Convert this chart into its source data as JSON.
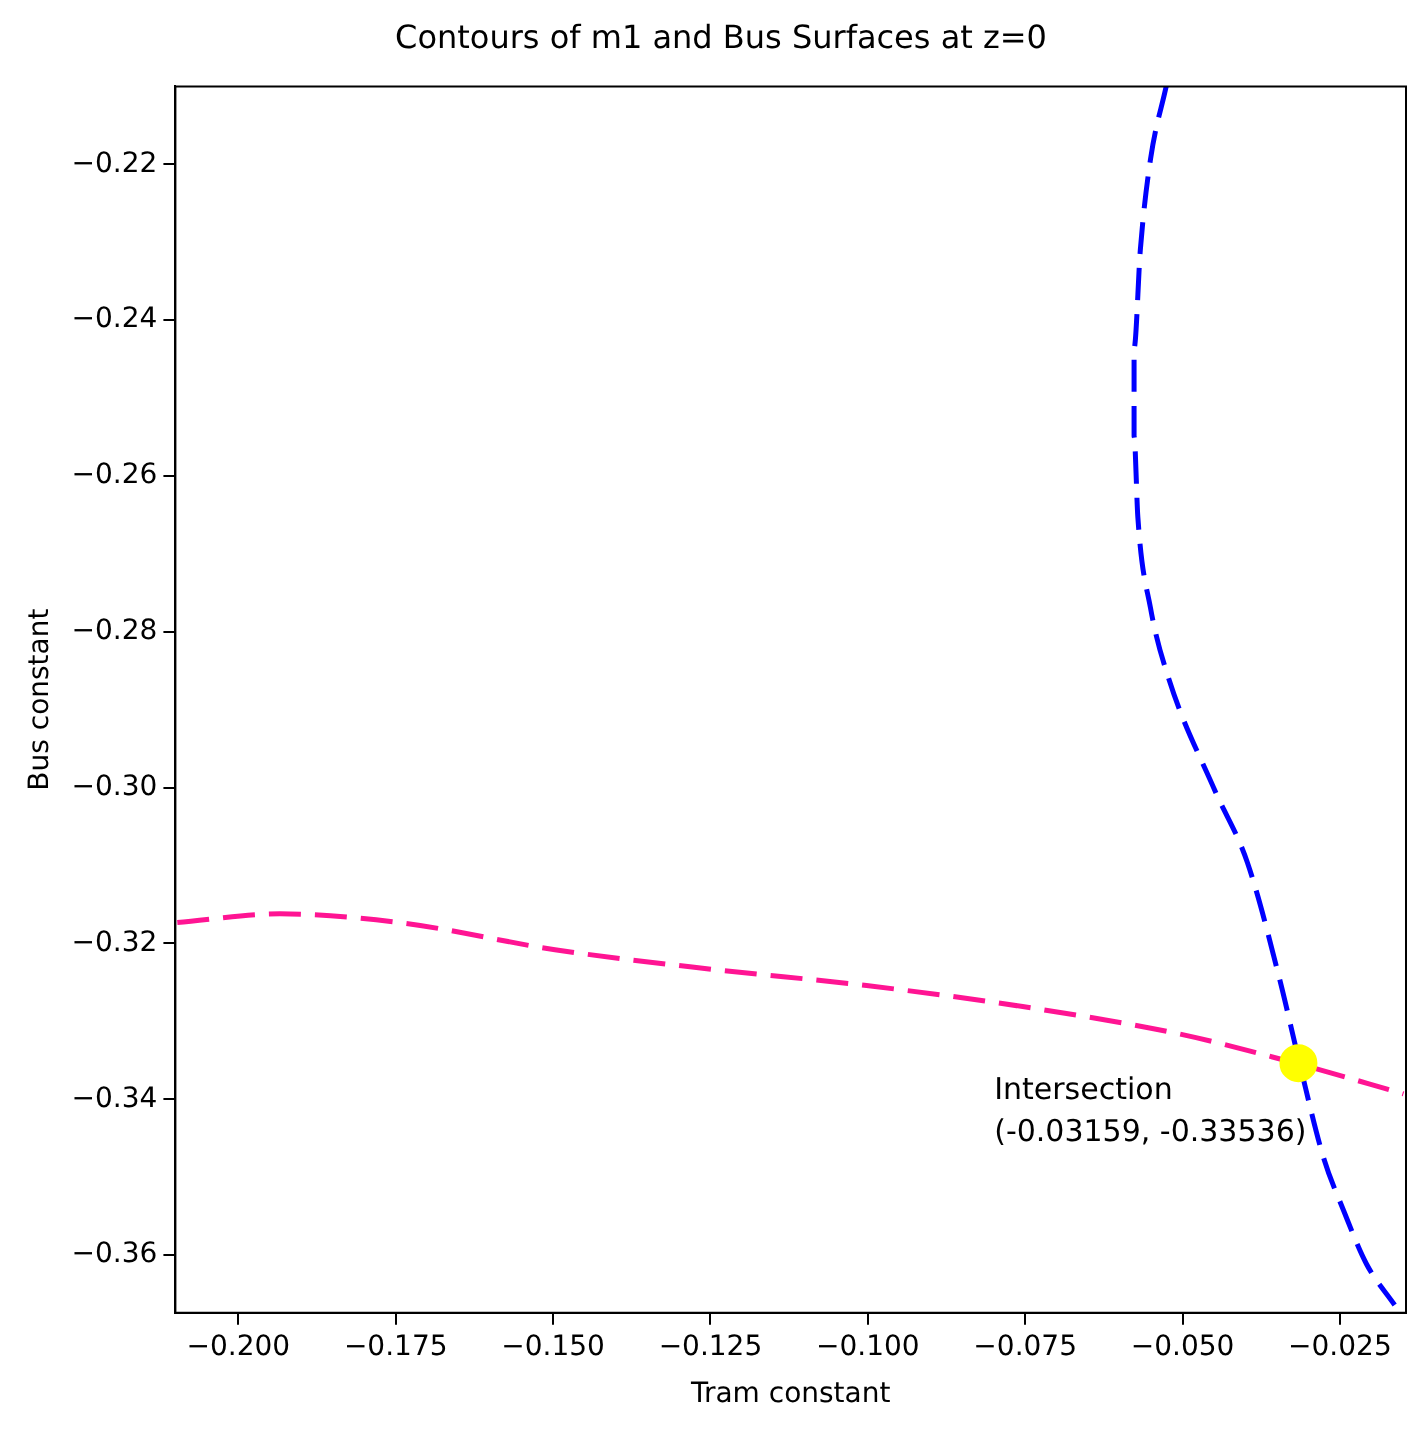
{
  "chart_data": {
    "type": "line",
    "title": "Contours of m1 and Bus Surfaces at z=0",
    "xlabel": "Tram constant",
    "ylabel": "Bus constant",
    "xlim": [
      -0.21,
      -0.0145
    ],
    "ylim": [
      -0.3674,
      -0.21
    ],
    "xticks": [
      {
        "value": -0.2,
        "label": "−0.200"
      },
      {
        "value": -0.175,
        "label": "−0.175"
      },
      {
        "value": -0.15,
        "label": "−0.150"
      },
      {
        "value": -0.125,
        "label": "−0.125"
      },
      {
        "value": -0.1,
        "label": "−0.100"
      },
      {
        "value": -0.075,
        "label": "−0.075"
      },
      {
        "value": -0.05,
        "label": "−0.050"
      },
      {
        "value": -0.025,
        "label": "−0.025"
      }
    ],
    "yticks": [
      {
        "value": -0.22,
        "label": "−0.22"
      },
      {
        "value": -0.24,
        "label": "−0.24"
      },
      {
        "value": -0.26,
        "label": "−0.26"
      },
      {
        "value": -0.28,
        "label": "−0.28"
      },
      {
        "value": -0.3,
        "label": "−0.30"
      },
      {
        "value": -0.32,
        "label": "−0.32"
      },
      {
        "value": -0.34,
        "label": "−0.34"
      },
      {
        "value": -0.36,
        "label": "−0.36"
      }
    ],
    "grid": false,
    "legend": false,
    "line_style": "dashed",
    "marker": "none",
    "series": [
      {
        "color": "#0000ff",
        "x": [
          -0.0526,
          -0.0551,
          -0.0567,
          -0.0577,
          -0.0577,
          -0.0571,
          -0.0551,
          -0.0522,
          -0.0449,
          -0.0397,
          -0.0346,
          -0.0314,
          -0.0276,
          -0.0244,
          -0.0208,
          -0.0163
        ],
        "values": [
          -0.21,
          -0.2194,
          -0.2309,
          -0.2436,
          -0.2549,
          -0.2653,
          -0.2769,
          -0.286,
          -0.3003,
          -0.3096,
          -0.3245,
          -0.3354,
          -0.3475,
          -0.3543,
          -0.3611,
          -0.3664
        ]
      },
      {
        "color": "#ff1493",
        "x": [
          -0.2097,
          -0.1934,
          -0.1745,
          -0.1497,
          -0.1249,
          -0.1002,
          -0.0754,
          -0.0506,
          -0.0314,
          -0.0149
        ],
        "values": [
          -0.3173,
          -0.3162,
          -0.3173,
          -0.3208,
          -0.3233,
          -0.3254,
          -0.3281,
          -0.3316,
          -0.3355,
          -0.3393
        ]
      },
      {
        "type": "scatter",
        "color": "#ffff00",
        "marker": "circle",
        "x": [
          -0.03159
        ],
        "values": [
          -0.33536
        ]
      }
    ],
    "annotations": [
      {
        "text": "Intersection\n(-0.03159, -0.33536)",
        "x": -0.03159,
        "y": -0.33536
      }
    ]
  }
}
